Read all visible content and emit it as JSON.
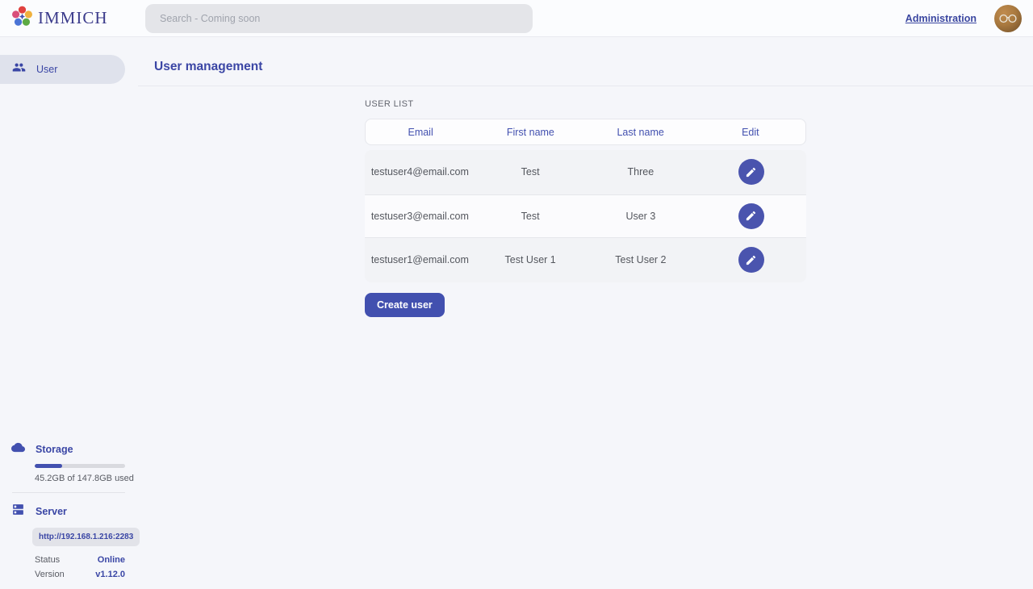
{
  "navbar": {
    "brand": "IMMICH",
    "search_placeholder": "Search - Coming soon",
    "admin_link": "Administration"
  },
  "sidebar": {
    "items": [
      {
        "label": "User"
      }
    ],
    "storage": {
      "title": "Storage",
      "usage_text": "45.2GB of 147.8GB used",
      "percent_used": "30.6"
    },
    "server": {
      "title": "Server",
      "url": "http://192.168.1.216:2283",
      "status_label": "Status",
      "status_value": "Online",
      "version_label": "Version",
      "version_value": "v1.12.0"
    }
  },
  "main": {
    "page_title": "User management",
    "section_title": "USER LIST",
    "table": {
      "columns": [
        "Email",
        "First name",
        "Last name",
        "Edit"
      ],
      "rows": [
        {
          "email": "testuser4@email.com",
          "first_name": "Test",
          "last_name": "Three"
        },
        {
          "email": "testuser3@email.com",
          "first_name": "Test",
          "last_name": "User 3"
        },
        {
          "email": "testuser1@email.com",
          "first_name": "Test User 1",
          "last_name": "Test User 2"
        }
      ]
    },
    "create_button": "Create user"
  },
  "colors": {
    "primary": "#4250af",
    "edit_button": "#4a54ae",
    "online_status": "#3a46a5",
    "page_background": "#f5f6fa",
    "navbar_background": "#fbfcfe",
    "sidebar_pill": "#dfe2ec"
  }
}
